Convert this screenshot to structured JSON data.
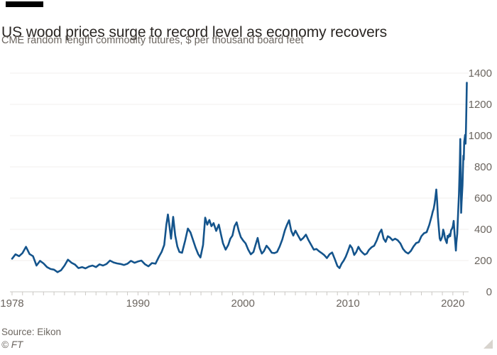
{
  "header": {
    "title": "US wood prices surge to record level as economy recovers",
    "subtitle": "CME random length commodity futures, $ per thousand board feet"
  },
  "footer": {
    "source": "Source: Eikon",
    "copyright": "© FT"
  },
  "colors": {
    "line": "#14548c",
    "grid": "#f0efed",
    "axis": "#cbc8c4",
    "tick": "#cbc8c4",
    "text_primary": "#2b2724",
    "text_secondary": "#6b655f",
    "top_bar": "#000000",
    "resize_handle": "#d8d4ce"
  },
  "chart_data": {
    "type": "line",
    "title": "US wood prices surge to record level as economy recovers",
    "subtitle": "CME random length commodity futures, $ per thousand board feet",
    "xlabel": "",
    "ylabel": "$ per thousand board feet",
    "xlim": [
      1977.8,
      2021.5
    ],
    "ylim": [
      0,
      1400
    ],
    "y_ticks": [
      0,
      200,
      400,
      600,
      800,
      1000,
      1200,
      1400
    ],
    "y_tick_side": "right",
    "x_tick_every_years": 1,
    "x_tick_start": 1978,
    "x_tick_end": 2021,
    "x_labeled_ticks": [
      1978,
      1990,
      2000,
      2010,
      2020
    ],
    "grid": "horizontal",
    "legend": null,
    "series": [
      {
        "name": "CME random length lumber futures ($/thousand board feet)",
        "points": [
          [
            1978.0,
            212
          ],
          [
            1978.33,
            240
          ],
          [
            1978.67,
            228
          ],
          [
            1979.0,
            248
          ],
          [
            1979.33,
            288
          ],
          [
            1979.67,
            242
          ],
          [
            1980.0,
            228
          ],
          [
            1980.33,
            168
          ],
          [
            1980.67,
            198
          ],
          [
            1981.0,
            182
          ],
          [
            1981.33,
            158
          ],
          [
            1981.67,
            146
          ],
          [
            1982.0,
            142
          ],
          [
            1982.33,
            126
          ],
          [
            1982.67,
            138
          ],
          [
            1983.0,
            168
          ],
          [
            1983.33,
            206
          ],
          [
            1983.67,
            186
          ],
          [
            1984.0,
            174
          ],
          [
            1984.33,
            152
          ],
          [
            1984.67,
            158
          ],
          [
            1985.0,
            150
          ],
          [
            1985.33,
            162
          ],
          [
            1985.67,
            168
          ],
          [
            1986.0,
            158
          ],
          [
            1986.33,
            176
          ],
          [
            1986.67,
            168
          ],
          [
            1987.0,
            178
          ],
          [
            1987.33,
            200
          ],
          [
            1987.67,
            188
          ],
          [
            1988.0,
            182
          ],
          [
            1988.33,
            178
          ],
          [
            1988.67,
            172
          ],
          [
            1989.0,
            180
          ],
          [
            1989.33,
            198
          ],
          [
            1989.67,
            186
          ],
          [
            1990.0,
            194
          ],
          [
            1990.33,
            200
          ],
          [
            1990.67,
            176
          ],
          [
            1991.0,
            163
          ],
          [
            1991.33,
            184
          ],
          [
            1991.67,
            180
          ],
          [
            1992.0,
            225
          ],
          [
            1992.25,
            255
          ],
          [
            1992.5,
            300
          ],
          [
            1992.7,
            430
          ],
          [
            1992.85,
            495
          ],
          [
            1993.0,
            420
          ],
          [
            1993.15,
            340
          ],
          [
            1993.35,
            480
          ],
          [
            1993.55,
            360
          ],
          [
            1993.75,
            290
          ],
          [
            1993.95,
            255
          ],
          [
            1994.2,
            250
          ],
          [
            1994.5,
            330
          ],
          [
            1994.75,
            405
          ],
          [
            1995.0,
            380
          ],
          [
            1995.25,
            330
          ],
          [
            1995.5,
            280
          ],
          [
            1995.75,
            240
          ],
          [
            1995.95,
            220
          ],
          [
            1996.2,
            300
          ],
          [
            1996.4,
            475
          ],
          [
            1996.6,
            430
          ],
          [
            1996.8,
            460
          ],
          [
            1997.0,
            420
          ],
          [
            1997.2,
            440
          ],
          [
            1997.45,
            390
          ],
          [
            1997.7,
            430
          ],
          [
            1997.9,
            370
          ],
          [
            1998.1,
            310
          ],
          [
            1998.35,
            270
          ],
          [
            1998.6,
            300
          ],
          [
            1998.8,
            340
          ],
          [
            1999.0,
            360
          ],
          [
            1999.2,
            420
          ],
          [
            1999.4,
            445
          ],
          [
            1999.6,
            390
          ],
          [
            1999.8,
            350
          ],
          [
            2000.0,
            330
          ],
          [
            2000.25,
            310
          ],
          [
            2000.5,
            270
          ],
          [
            2000.75,
            240
          ],
          [
            2001.0,
            255
          ],
          [
            2001.2,
            300
          ],
          [
            2001.4,
            345
          ],
          [
            2001.6,
            280
          ],
          [
            2001.8,
            245
          ],
          [
            2002.0,
            260
          ],
          [
            2002.25,
            295
          ],
          [
            2002.5,
            275
          ],
          [
            2002.75,
            250
          ],
          [
            2003.0,
            248
          ],
          [
            2003.25,
            255
          ],
          [
            2003.5,
            290
          ],
          [
            2003.75,
            335
          ],
          [
            2004.0,
            395
          ],
          [
            2004.2,
            430
          ],
          [
            2004.4,
            458
          ],
          [
            2004.6,
            390
          ],
          [
            2004.8,
            360
          ],
          [
            2005.0,
            392
          ],
          [
            2005.25,
            360
          ],
          [
            2005.5,
            330
          ],
          [
            2005.75,
            345
          ],
          [
            2006.0,
            366
          ],
          [
            2006.25,
            330
          ],
          [
            2006.5,
            300
          ],
          [
            2006.75,
            270
          ],
          [
            2007.0,
            274
          ],
          [
            2007.25,
            260
          ],
          [
            2007.5,
            248
          ],
          [
            2007.75,
            235
          ],
          [
            2008.0,
            216
          ],
          [
            2008.25,
            240
          ],
          [
            2008.5,
            252
          ],
          [
            2008.75,
            210
          ],
          [
            2009.0,
            165
          ],
          [
            2009.2,
            152
          ],
          [
            2009.4,
            180
          ],
          [
            2009.6,
            200
          ],
          [
            2009.8,
            225
          ],
          [
            2010.0,
            260
          ],
          [
            2010.2,
            298
          ],
          [
            2010.4,
            280
          ],
          [
            2010.6,
            236
          ],
          [
            2010.8,
            255
          ],
          [
            2011.0,
            288
          ],
          [
            2011.2,
            265
          ],
          [
            2011.4,
            250
          ],
          [
            2011.6,
            238
          ],
          [
            2011.8,
            245
          ],
          [
            2012.0,
            268
          ],
          [
            2012.25,
            285
          ],
          [
            2012.5,
            295
          ],
          [
            2012.75,
            330
          ],
          [
            2013.0,
            375
          ],
          [
            2013.2,
            398
          ],
          [
            2013.4,
            340
          ],
          [
            2013.6,
            320
          ],
          [
            2013.8,
            356
          ],
          [
            2014.0,
            348
          ],
          [
            2014.25,
            330
          ],
          [
            2014.5,
            340
          ],
          [
            2014.75,
            330
          ],
          [
            2015.0,
            310
          ],
          [
            2015.25,
            275
          ],
          [
            2015.5,
            255
          ],
          [
            2015.75,
            245
          ],
          [
            2016.0,
            262
          ],
          [
            2016.25,
            290
          ],
          [
            2016.5,
            312
          ],
          [
            2016.75,
            318
          ],
          [
            2017.0,
            356
          ],
          [
            2017.25,
            375
          ],
          [
            2017.5,
            382
          ],
          [
            2017.75,
            428
          ],
          [
            2018.0,
            490
          ],
          [
            2018.08,
            512
          ],
          [
            2018.17,
            532
          ],
          [
            2018.25,
            562
          ],
          [
            2018.33,
            600
          ],
          [
            2018.42,
            655
          ],
          [
            2018.5,
            578
          ],
          [
            2018.58,
            478
          ],
          [
            2018.67,
            400
          ],
          [
            2018.75,
            342
          ],
          [
            2018.83,
            328
          ],
          [
            2018.92,
            342
          ],
          [
            2019.0,
            356
          ],
          [
            2019.08,
            398
          ],
          [
            2019.17,
            376
          ],
          [
            2019.25,
            344
          ],
          [
            2019.33,
            328
          ],
          [
            2019.42,
            312
          ],
          [
            2019.5,
            358
          ],
          [
            2019.58,
            348
          ],
          [
            2019.67,
            368
          ],
          [
            2019.75,
            356
          ],
          [
            2019.83,
            394
          ],
          [
            2019.92,
            404
          ],
          [
            2020.0,
            418
          ],
          [
            2020.08,
            454
          ],
          [
            2020.17,
            368
          ],
          [
            2020.25,
            300
          ],
          [
            2020.29,
            264
          ],
          [
            2020.33,
            312
          ],
          [
            2020.42,
            372
          ],
          [
            2020.5,
            502
          ],
          [
            2020.58,
            622
          ],
          [
            2020.67,
            832
          ],
          [
            2020.71,
            978
          ],
          [
            2020.75,
            762
          ],
          [
            2020.79,
            506
          ],
          [
            2020.83,
            572
          ],
          [
            2020.92,
            682
          ],
          [
            2021.0,
            872
          ],
          [
            2021.04,
            846
          ],
          [
            2021.08,
            958
          ],
          [
            2021.17,
            1004
          ],
          [
            2021.21,
            948
          ],
          [
            2021.25,
            1042
          ],
          [
            2021.29,
            1180
          ],
          [
            2021.33,
            1338
          ]
        ]
      }
    ]
  }
}
